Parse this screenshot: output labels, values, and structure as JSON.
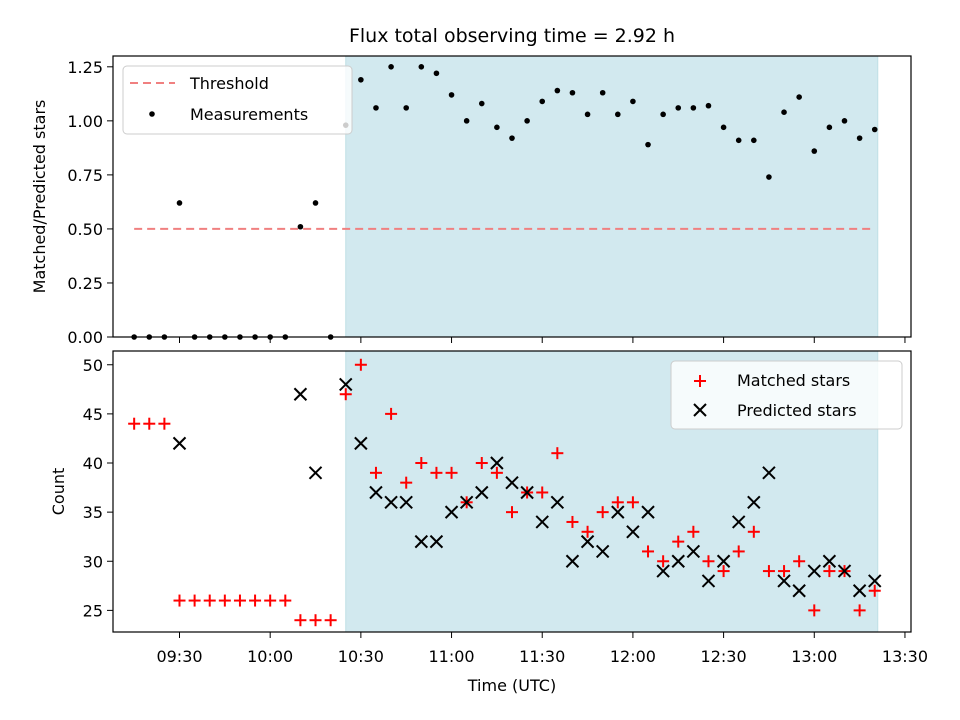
{
  "chart_data": [
    {
      "type": "scatter",
      "title": "Flux total observing time = 2.92 h",
      "xlabel": "",
      "ylabel": "Matched/Predicted stars",
      "xlim": [
        "09:08",
        "13:32"
      ],
      "ylim": [
        0,
        1.3
      ],
      "yticks": [
        0,
        0.25,
        0.5,
        0.75,
        1.0,
        1.25
      ],
      "ytick_labels": [
        "0.00",
        "0.25",
        "0.50",
        "0.75",
        "1.00",
        "1.25"
      ],
      "shaded_region": {
        "from": "10:25",
        "to": "13:21",
        "color": "#d2e9ef"
      },
      "threshold": {
        "name": "Threshold",
        "value": 0.5,
        "from": "09:15",
        "to": "13:20",
        "color": "#f08080"
      },
      "series": [
        {
          "name": "Measurements",
          "color": "#000000",
          "x": [
            "09:15",
            "09:20",
            "09:25",
            "09:30",
            "09:35",
            "09:40",
            "09:45",
            "09:50",
            "09:55",
            "10:00",
            "10:05",
            "10:10",
            "10:15",
            "10:20",
            "10:25",
            "10:30",
            "10:35",
            "10:40",
            "10:45",
            "10:50",
            "10:55",
            "11:00",
            "11:05",
            "11:10",
            "11:15",
            "11:20",
            "11:25",
            "11:30",
            "11:35",
            "11:40",
            "11:45",
            "11:50",
            "11:55",
            "12:00",
            "12:05",
            "12:10",
            "12:15",
            "12:20",
            "12:25",
            "12:30",
            "12:35",
            "12:40",
            "12:45",
            "12:50",
            "12:55",
            "13:00",
            "13:05",
            "13:10",
            "13:15",
            "13:20"
          ],
          "y": [
            0,
            0,
            0,
            0.62,
            0,
            0,
            0,
            0,
            0,
            0,
            0,
            0.51,
            0.62,
            0,
            0.98,
            1.19,
            1.06,
            1.25,
            1.06,
            1.25,
            1.22,
            1.12,
            1.0,
            1.08,
            0.97,
            0.92,
            1.0,
            1.09,
            1.14,
            1.13,
            1.03,
            1.13,
            1.03,
            1.09,
            0.89,
            1.03,
            1.06,
            1.06,
            1.07,
            0.97,
            0.91,
            0.91,
            0.74,
            1.04,
            1.11,
            0.86,
            0.97,
            1.0,
            0.92,
            0.96
          ]
        }
      ],
      "legend": [
        "Threshold",
        "Measurements"
      ],
      "legend_position": "top-left"
    },
    {
      "type": "scatter",
      "title": "",
      "xlabel": "Time (UTC)",
      "ylabel": "Count",
      "xlim": [
        "09:08",
        "13:32"
      ],
      "ylim": [
        22.8,
        51.4
      ],
      "yticks": [
        25,
        30,
        35,
        40,
        45,
        50
      ],
      "ytick_labels": [
        "25",
        "30",
        "35",
        "40",
        "45",
        "50"
      ],
      "xticks": [
        "09:30",
        "10:00",
        "10:30",
        "11:00",
        "11:30",
        "12:00",
        "12:30",
        "13:00",
        "13:30"
      ],
      "shaded_region": {
        "from": "10:25",
        "to": "13:21",
        "color": "#d2e9ef"
      },
      "x": [
        "09:15",
        "09:20",
        "09:25",
        "09:30",
        "09:35",
        "09:40",
        "09:45",
        "09:50",
        "09:55",
        "10:00",
        "10:05",
        "10:10",
        "10:15",
        "10:20",
        "10:25",
        "10:30",
        "10:35",
        "10:40",
        "10:45",
        "10:50",
        "10:55",
        "11:00",
        "11:05",
        "11:10",
        "11:15",
        "11:20",
        "11:25",
        "11:30",
        "11:35",
        "11:40",
        "11:45",
        "11:50",
        "11:55",
        "12:00",
        "12:05",
        "12:10",
        "12:15",
        "12:20",
        "12:25",
        "12:30",
        "12:35",
        "12:40",
        "12:45",
        "12:50",
        "12:55",
        "13:00",
        "13:05",
        "13:10",
        "13:15",
        "13:20"
      ],
      "series": [
        {
          "name": "Matched stars",
          "marker": "+",
          "color": "#ff0000",
          "values": [
            44,
            44,
            44,
            26,
            26,
            26,
            26,
            26,
            26,
            26,
            26,
            24,
            24,
            24,
            47,
            50,
            39,
            45,
            38,
            40,
            39,
            39,
            36,
            40,
            39,
            35,
            37,
            37,
            41,
            34,
            33,
            35,
            36,
            36,
            31,
            30,
            32,
            33,
            30,
            29,
            31,
            33,
            29,
            29,
            30,
            25,
            29,
            29,
            25,
            27
          ]
        },
        {
          "name": "Predicted stars",
          "marker": "x",
          "color": "#000000",
          "values": [
            null,
            null,
            null,
            42,
            null,
            null,
            null,
            null,
            null,
            null,
            null,
            47,
            39,
            null,
            48,
            42,
            37,
            36,
            36,
            32,
            32,
            35,
            36,
            37,
            40,
            38,
            37,
            34,
            36,
            30,
            32,
            31,
            35,
            33,
            35,
            29,
            30,
            31,
            28,
            30,
            34,
            36,
            39,
            28,
            27,
            29,
            30,
            29,
            27,
            28
          ]
        }
      ],
      "legend": [
        "Matched stars",
        "Predicted stars"
      ],
      "legend_position": "top-right"
    }
  ]
}
